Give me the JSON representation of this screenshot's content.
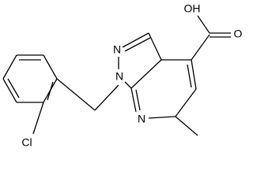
{
  "atoms": {
    "hydroxyl": "OH",
    "carbonyl_oxygen": "O",
    "n1": "N",
    "n2": "N",
    "n7": "N",
    "chlorine": "Cl"
  }
}
